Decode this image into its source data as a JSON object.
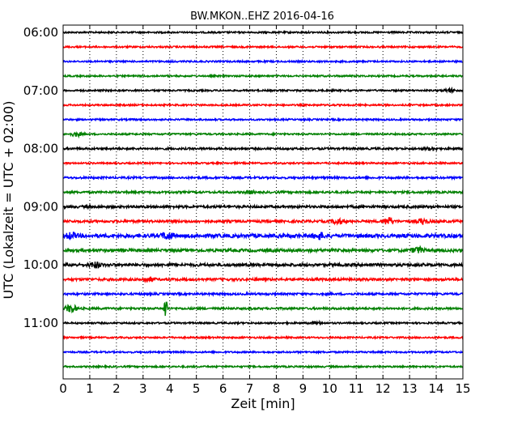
{
  "chart_data": {
    "type": "line",
    "title": "BW.MKON..EHZ 2016-04-16",
    "xlabel": "Zeit  [min]",
    "ylabel": "UTC (Lokalzeit = UTC + 02:00)",
    "xlim": [
      0,
      15
    ],
    "x_ticks": [
      "0",
      "1",
      "2",
      "3",
      "4",
      "5",
      "6",
      "7",
      "8",
      "9",
      "10",
      "11",
      "12",
      "13",
      "14",
      "15"
    ],
    "y_ticks": [
      "06:00",
      "07:00",
      "08:00",
      "09:00",
      "10:00",
      "11:00"
    ],
    "grid": "vertical dotted",
    "trace_interval_min": 15,
    "first_trace_time": "06:00",
    "trace_count": 24,
    "trace_colors": [
      "#000000",
      "#ff0000",
      "#0000ff",
      "#008000"
    ],
    "traces": [
      {
        "time": "06:00",
        "amplitude": 2,
        "events": []
      },
      {
        "time": "06:15",
        "amplitude": 2,
        "events": []
      },
      {
        "time": "06:30",
        "amplitude": 2,
        "events": []
      },
      {
        "time": "06:45",
        "amplitude": 2,
        "events": []
      },
      {
        "time": "07:00",
        "amplitude": 2,
        "events": [
          {
            "t": 14.5,
            "amp": 4
          }
        ]
      },
      {
        "time": "07:15",
        "amplitude": 2,
        "events": []
      },
      {
        "time": "07:30",
        "amplitude": 2,
        "events": []
      },
      {
        "time": "07:45",
        "amplitude": 2,
        "events": [
          {
            "t": 0.5,
            "amp": 5
          }
        ]
      },
      {
        "time": "08:00",
        "amplitude": 2.5,
        "events": [
          {
            "t": 13.8,
            "amp": 3
          }
        ]
      },
      {
        "time": "08:15",
        "amplitude": 2,
        "events": []
      },
      {
        "time": "08:30",
        "amplitude": 2.5,
        "events": []
      },
      {
        "time": "08:45",
        "amplitude": 2.5,
        "events": [
          {
            "t": 7,
            "amp": 3
          }
        ]
      },
      {
        "time": "09:00",
        "amplitude": 3,
        "events": []
      },
      {
        "time": "09:15",
        "amplitude": 3,
        "events": [
          {
            "t": 10.3,
            "amp": 6
          },
          {
            "t": 12.2,
            "amp": 8
          },
          {
            "t": 13.5,
            "amp": 6
          }
        ]
      },
      {
        "time": "09:30",
        "amplitude": 4.5,
        "events": [
          {
            "t": 0.3,
            "amp": 6
          },
          {
            "t": 3.9,
            "amp": 7
          },
          {
            "t": 9.6,
            "amp": 7
          }
        ]
      },
      {
        "time": "09:45",
        "amplitude": 3.5,
        "events": [
          {
            "t": 13.3,
            "amp": 7
          }
        ]
      },
      {
        "time": "10:00",
        "amplitude": 3.5,
        "events": [
          {
            "t": 1.2,
            "amp": 6
          }
        ]
      },
      {
        "time": "10:15",
        "amplitude": 3,
        "events": [
          {
            "t": 3.2,
            "amp": 5
          }
        ]
      },
      {
        "time": "10:30",
        "amplitude": 2.5,
        "events": []
      },
      {
        "time": "10:45",
        "amplitude": 2.5,
        "events": [
          {
            "t": 0.3,
            "amp": 9
          },
          {
            "t": 3.85,
            "amp": 40
          }
        ]
      },
      {
        "time": "11:00",
        "amplitude": 2,
        "events": [
          {
            "t": 9.5,
            "amp": 3
          }
        ]
      },
      {
        "time": "11:15",
        "amplitude": 2,
        "events": []
      },
      {
        "time": "11:30",
        "amplitude": 2,
        "events": []
      },
      {
        "time": "11:45",
        "amplitude": 2,
        "events": []
      }
    ]
  }
}
